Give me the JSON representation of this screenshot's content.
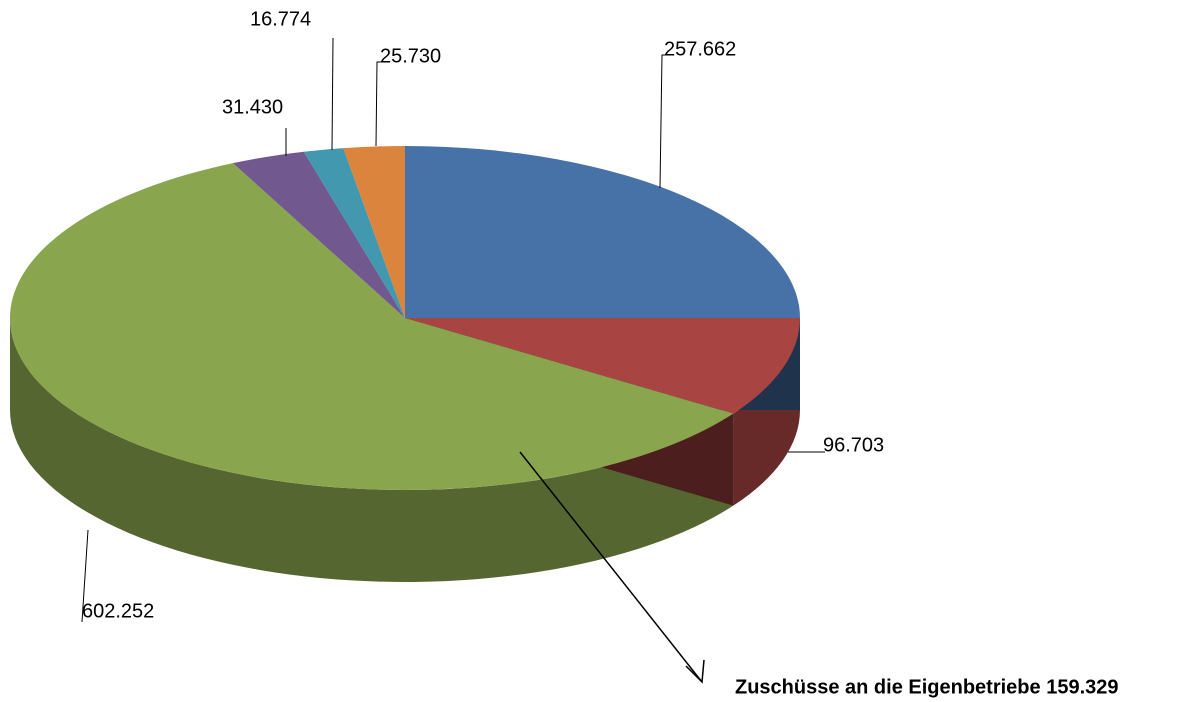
{
  "chart_data": {
    "type": "pie",
    "values": [
      257662,
      96703,
      602252,
      31430,
      16774,
      25730
    ],
    "value_labels": [
      "257.662",
      "96.703",
      "602.252",
      "31.430",
      "16.774",
      "25.730"
    ],
    "colors": [
      "#4672a8",
      "#a84442",
      "#89a54e",
      "#71588f",
      "#4198af",
      "#db843d"
    ],
    "annotation": "Zuschüsse an die Eigenbetriebe 159.329"
  }
}
